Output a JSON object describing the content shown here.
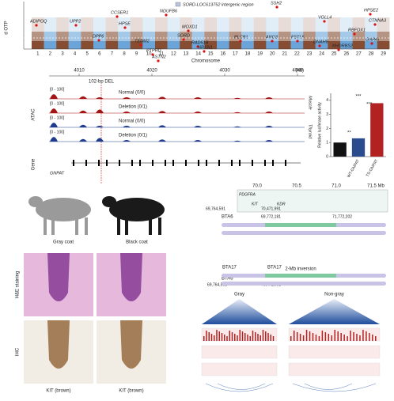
{
  "manhattan": {
    "y_axis_label": "d OTP",
    "x_axis_label": "Chromosome",
    "legend": "SORD-LOC613752 intergenic region",
    "chromosomes": [
      "1",
      "2",
      "3",
      "4",
      "5",
      "6",
      "7",
      "8",
      "9",
      "10",
      "11",
      "12",
      "13",
      "14",
      "15",
      "16",
      "17",
      "18",
      "19",
      "20",
      "21",
      "22",
      "23",
      "24",
      "25",
      "26",
      "27",
      "28",
      "29"
    ],
    "genes": [
      "ADIPOQ",
      "UPP2",
      "DPP6",
      "CCSER1",
      "HPSE",
      "NDUFB6",
      "SORD",
      "TENM2",
      "MOXD1",
      "RAD51B",
      "NRXN1",
      "PTPRD",
      "ASTN2",
      "PLCB1",
      "ANO3",
      "FSTL5",
      "SSH2",
      "DNAH8",
      "VGLL4",
      "KHDRBS2",
      "RBFOX1",
      "HPSE2",
      "CTNNA3",
      "GNPAT"
    ]
  },
  "browser": {
    "coords": [
      "4010",
      "4020",
      "4030",
      "4040"
    ],
    "unit": "(kb)",
    "deletion_label": "102-bp DEL",
    "tracks": [
      {
        "range": "[0 - 100]",
        "label": "Normal (0/0)"
      },
      {
        "range": "[0 - 100]",
        "label": "Deletion (0/1)"
      },
      {
        "range": "[0 - 100]",
        "label": "Normal (0/0)"
      },
      {
        "range": "[0 - 100]",
        "label": "Deletion (0/1)"
      }
    ],
    "assay": "ATAC",
    "tissues": [
      "Muscle",
      "Thyroid"
    ],
    "gene_row": "Gene",
    "gene": "GNPAT"
  },
  "chart_data": {
    "type": "bar",
    "y_axis_label": "Relative luciferase activity",
    "categories": [
      null,
      "WT-GNPAT",
      "TS-GNPAT"
    ],
    "values": [
      1.0,
      1.3,
      3.8
    ],
    "colors": [
      "#111111",
      "#2a4b8d",
      "#b22222"
    ],
    "ylim": [
      0,
      4.5
    ],
    "yticks": [
      0,
      1,
      2,
      3,
      4
    ],
    "significance": [
      "**",
      "***",
      "***"
    ]
  },
  "photos": {
    "coats": [
      "Gray coat",
      "Black coat"
    ],
    "stains": [
      "H&E staining",
      "IHC"
    ],
    "ihc_captions": [
      "KIT (brown)",
      "KIT (brown)"
    ]
  },
  "locus": {
    "coords": [
      "70.0",
      "70.5",
      "71.0",
      "71.5 Mb"
    ],
    "genes": [
      "PDGFRA",
      "KIT",
      "KDR"
    ],
    "positions": [
      "69,764,591",
      "70,471,991",
      "69,772,181",
      "71,772,202",
      "69,764,591",
      "70,471,991"
    ],
    "chromosomes": [
      "BTA6",
      "BTA17",
      "BTA17",
      "BTA6"
    ],
    "inversion": "2-Mb inversion",
    "hic": [
      "Gray",
      "Non-gray"
    ]
  }
}
